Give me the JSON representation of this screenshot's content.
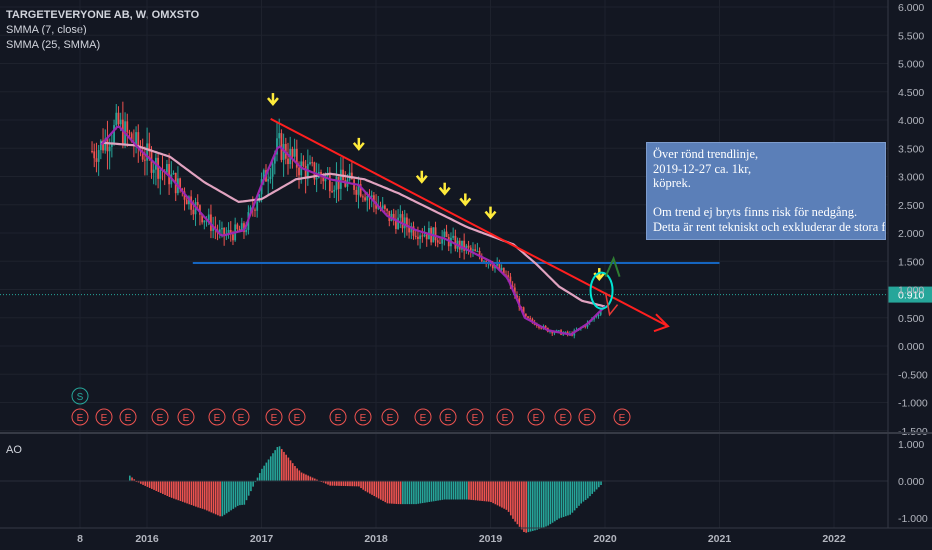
{
  "legend": {
    "symbol": "TARGETEVERYONE AB, W, OMXSTO",
    "ind1": "SMMA (7, close)",
    "ind2": "SMMA (25, SMMA)"
  },
  "annotation": {
    "line1": "Över rönd trendlinje,",
    "line2": "2019-12-27 ca. 1kr,",
    "line3": "köprek.",
    "line4": "",
    "line5": "Om trend ej bryts finns risk för nedgång.",
    "line6": "Detta är rent tekniskt och exkluderar de stora f"
  },
  "ao_label": "AO",
  "price_badge": "0.910",
  "split_marker": "S",
  "earnings_marker": "E",
  "colors": {
    "background": "#131722",
    "up": "#26a69a",
    "down": "#ef5350",
    "smma7": "#9c27b0",
    "smma25": "#e1a3c0",
    "trendline": "#ff1f1f",
    "support": "#1565c0",
    "arrow_marker": "#ffeb3b",
    "badge": "#26a69a"
  },
  "chart_data": [
    {
      "type": "candlestick",
      "title": "TARGETEVERYONE AB, W, OMXSTO",
      "price_axis_ticks": [
        "6.000",
        "5.500",
        "5.000",
        "4.500",
        "4.000",
        "3.500",
        "3.000",
        "2.500",
        "2.000",
        "1.500",
        "1.000",
        "0.500",
        "0.000",
        "-0.500",
        "-1.000",
        "-1.500"
      ],
      "time_axis_ticks": [
        "8",
        "2016",
        "2017",
        "2018",
        "2019",
        "2020",
        "2021",
        "2022"
      ],
      "ylim": [
        -1.5,
        6.0
      ],
      "last_price": 0.91,
      "series": [
        {
          "name": "SMMA (7, close)",
          "x": [
            2015.55,
            2015.75,
            2015.95,
            2016.2,
            2016.45,
            2016.65,
            2016.85,
            2017.0,
            2017.15,
            2017.35,
            2017.6,
            2017.85,
            2018.1,
            2018.35,
            2018.6,
            2018.85,
            2019.0,
            2019.15,
            2019.3,
            2019.5,
            2019.7,
            2019.85,
            2020.0
          ],
          "values": [
            3.45,
            3.9,
            3.45,
            3.0,
            2.4,
            1.95,
            2.05,
            2.85,
            3.55,
            3.15,
            2.95,
            2.85,
            2.3,
            2.05,
            1.9,
            1.65,
            1.5,
            1.2,
            0.5,
            0.28,
            0.2,
            0.4,
            0.7
          ]
        },
        {
          "name": "SMMA (25, SMMA)",
          "x": [
            2015.6,
            2015.9,
            2016.2,
            2016.5,
            2016.8,
            2017.0,
            2017.3,
            2017.6,
            2017.9,
            2018.2,
            2018.5,
            2018.8,
            2019.0,
            2019.2,
            2019.4,
            2019.6,
            2019.8,
            2020.0
          ],
          "values": [
            3.6,
            3.55,
            3.35,
            2.9,
            2.55,
            2.6,
            2.95,
            3.05,
            2.95,
            2.7,
            2.4,
            2.1,
            1.95,
            1.8,
            1.45,
            1.05,
            0.8,
            0.7
          ]
        }
      ],
      "drawings": [
        {
          "name": "descending trendline",
          "x": [
            2017.08,
            2020.55
          ],
          "values": [
            4.02,
            0.35
          ]
        },
        {
          "name": "support line",
          "x": [
            2016.4,
            2021.0
          ],
          "values": [
            1.47,
            1.47
          ]
        }
      ],
      "marker_arrows_x": [
        2017.1,
        2017.85,
        2018.4,
        2018.6,
        2018.78,
        2019.0,
        2019.95
      ]
    },
    {
      "type": "bar",
      "title": "AO",
      "ticks": [
        "1.000",
        "0.000",
        "-1.000"
      ],
      "ylim": [
        -1.1,
        1.1
      ]
    }
  ]
}
